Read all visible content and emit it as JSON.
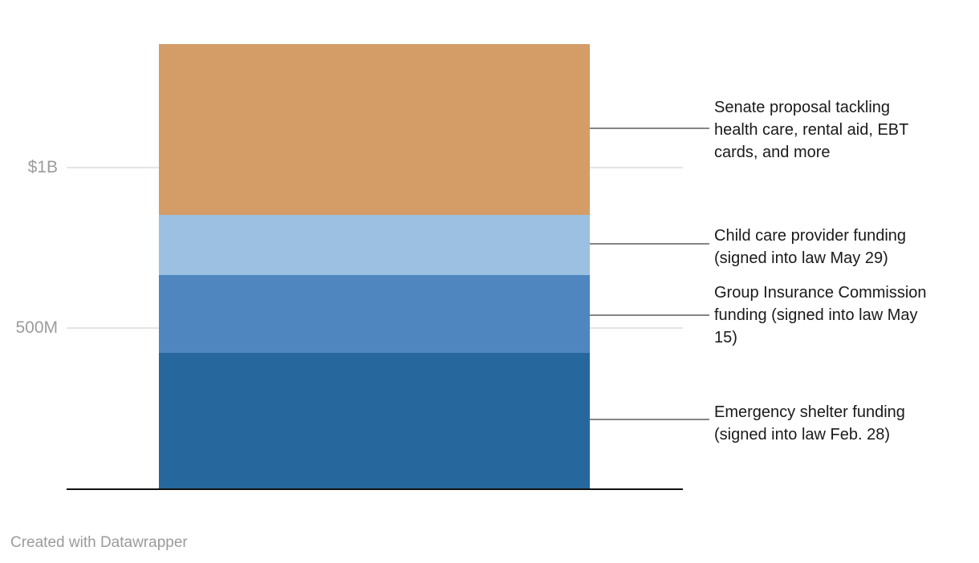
{
  "chart_data": {
    "type": "bar",
    "variant": "single-stacked-column",
    "title": "",
    "xlabel": "",
    "ylabel": "",
    "unit": "USD",
    "ylim_millions": [
      0,
      1390
    ],
    "gridlines": "horizontal",
    "legend_position": "right-callouts",
    "y_ticks": [
      {
        "label": "$1B",
        "value_millions": 1000
      },
      {
        "label": "500M",
        "value_millions": 500
      }
    ],
    "series": [
      {
        "name": "Emergency shelter funding (signed into law Feb. 28)",
        "value_millions": 425,
        "color": "#26689d"
      },
      {
        "name": "Group Insurance Commission funding (signed into law May 15)",
        "value_millions": 240,
        "color": "#4f86c0"
      },
      {
        "name": "Child care provider funding (signed into law May 29)",
        "value_millions": 190,
        "color": "#9bc0e2"
      },
      {
        "name": "Senate proposal tackling health care, rental aid, EBT cards, and more",
        "value_millions": 530,
        "color": "#d49c66"
      }
    ],
    "total_millions": 1385
  },
  "axis": {
    "tick_1b": "$1B",
    "tick_500m": "500M"
  },
  "callouts": {
    "senate": {
      "lines": {
        "0": "Senate proposal tackling",
        "1": "health care, rental aid, EBT",
        "2": "cards, and more"
      }
    },
    "childcare": {
      "lines": {
        "0": "Child care provider funding",
        "1": "(signed into law May 29)"
      }
    },
    "gic": {
      "lines": {
        "0": "Group Insurance Commission",
        "1": "funding (signed into law May",
        "2": "15)"
      }
    },
    "shelter": {
      "lines": {
        "0": "Emergency shelter funding",
        "1": "(signed into law Feb. 28)"
      }
    }
  },
  "footer": {
    "credit": "Created with Datawrapper"
  },
  "colors": {
    "segment_senate": "#d49c66",
    "segment_childcare": "#9bc0e2",
    "segment_gic": "#4f86c0",
    "segment_shelter": "#26689d",
    "gridline": "#e4e4e4",
    "axis_line": "#111111",
    "connector": "#858585",
    "tick_text": "#9c9c9c",
    "label_text": "#1a1a1a",
    "credit_text": "#9b9b9b"
  }
}
